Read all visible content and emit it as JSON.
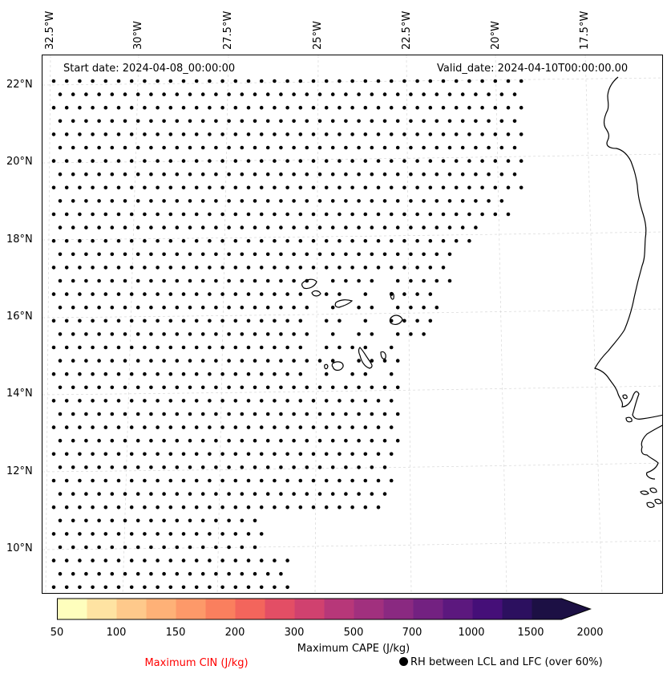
{
  "header": {
    "start_date": "Start date: 2024-04-08_00:00:00",
    "valid_date": "Valid_date: 2024-04-10T00:00:00.00"
  },
  "map": {
    "longitude_labels": [
      "32.5°W",
      "30°W",
      "27.5°W",
      "25°W",
      "22.5°W",
      "20°W",
      "17.5°W"
    ],
    "latitude_labels": [
      "22°N",
      "20°N",
      "18°N",
      "16°N",
      "14°N",
      "12°N",
      "10°N"
    ],
    "gridlines": true,
    "coastline_color": "#000000",
    "marker_color": "#000000"
  },
  "colorbar": {
    "title": "Maximum CAPE (J/kg)",
    "tick_labels": [
      "50",
      "100",
      "150",
      "200",
      "300",
      "500",
      "700",
      "1000",
      "1500",
      "2000"
    ],
    "colors": [
      "#fefebd",
      "#fee3a2",
      "#fec98b",
      "#feb177",
      "#fd9969",
      "#fa7f5e",
      "#f3655c",
      "#e34e65",
      "#d0416f",
      "#b73779",
      "#a1307e",
      "#8a2981",
      "#732181",
      "#5c187e",
      "#450f78",
      "#2c105f",
      "#1c1044"
    ],
    "extend": "max"
  },
  "legend": {
    "cin_label": "Maximum CIN (J/kg)",
    "cin_color": "#ff0000",
    "rh_label": "RH between LCL and LFC (over 60%)"
  }
}
